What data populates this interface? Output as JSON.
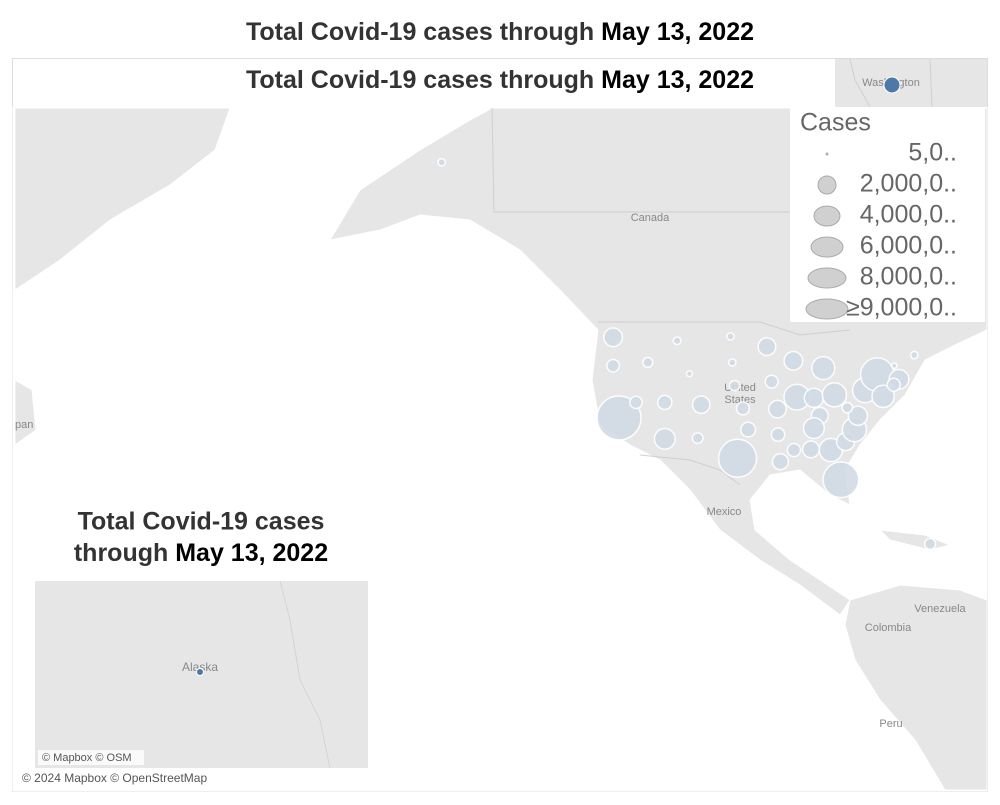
{
  "header": {
    "title_prefix": "Total Covid-19 cases through ",
    "title_date": "May 13, 2022"
  },
  "map": {
    "title_prefix": "Total Covid-19 cases through ",
    "title_date": "May 13, 2022",
    "labels": {
      "canada": "Canada",
      "united": "United",
      "states": "States",
      "mexico": "Mexico",
      "venezuela": "Venezuela",
      "colombia": "Colombia",
      "peru": "Peru",
      "japan": "pan"
    },
    "credit": "© 2024 Mapbox © OpenStreetMap",
    "bubbles": [
      {
        "lon": -120.5,
        "lat": 47.4,
        "cases": 1600000
      },
      {
        "lon": -120.5,
        "lat": 44,
        "cases": 720000
      },
      {
        "lon": -119.5,
        "lat": 37.2,
        "cases": 9000000
      },
      {
        "lon": -116.6,
        "lat": 39.3,
        "cases": 700000
      },
      {
        "lon": -114.6,
        "lat": 44.4,
        "cases": 450000
      },
      {
        "lon": -109.6,
        "lat": 47,
        "cases": 270000
      },
      {
        "lon": -107.5,
        "lat": 43,
        "cases": 160000
      },
      {
        "lon": -111.7,
        "lat": 39.3,
        "cases": 930000
      },
      {
        "lon": -111.7,
        "lat": 34.3,
        "cases": 2000000
      },
      {
        "lon": -105.5,
        "lat": 39,
        "cases": 1400000
      },
      {
        "lon": -106.1,
        "lat": 34.4,
        "cases": 520000
      },
      {
        "lon": -100.5,
        "lat": 47.5,
        "cases": 240000
      },
      {
        "lon": -100.2,
        "lat": 44.4,
        "cases": 240000
      },
      {
        "lon": -99.8,
        "lat": 41.5,
        "cases": 480000
      },
      {
        "lon": -98.4,
        "lat": 38.5,
        "cases": 770000
      },
      {
        "lon": -97.5,
        "lat": 35.6,
        "cases": 1000000
      },
      {
        "lon": -99.3,
        "lat": 31.5,
        "cases": 6700000
      },
      {
        "lon": -94.3,
        "lat": 46.3,
        "cases": 1450000
      },
      {
        "lon": -93.5,
        "lat": 42,
        "cases": 760000
      },
      {
        "lon": -92.5,
        "lat": 38.4,
        "cases": 1420000
      },
      {
        "lon": -92.4,
        "lat": 34.9,
        "cases": 830000
      },
      {
        "lon": -92,
        "lat": 31,
        "cases": 1170000
      },
      {
        "lon": -89.8,
        "lat": 44.6,
        "cases": 1600000
      },
      {
        "lon": -89.2,
        "lat": 40,
        "cases": 3100000
      },
      {
        "lon": -84.7,
        "lat": 43.7,
        "cases": 2450000
      },
      {
        "lon": -86.3,
        "lat": 39.9,
        "cases": 1700000
      },
      {
        "lon": -82.8,
        "lat": 40.3,
        "cases": 2700000
      },
      {
        "lon": -85.3,
        "lat": 37.5,
        "cases": 1320000
      },
      {
        "lon": -86.3,
        "lat": 35.8,
        "cases": 2000000
      },
      {
        "lon": -89.7,
        "lat": 32.7,
        "cases": 800000
      },
      {
        "lon": -86.8,
        "lat": 32.8,
        "cases": 1300000
      },
      {
        "lon": -83.4,
        "lat": 32.7,
        "cases": 2500000
      },
      {
        "lon": -81.7,
        "lat": 28.3,
        "cases": 5900000
      },
      {
        "lon": -80.9,
        "lat": 33.9,
        "cases": 1480000
      },
      {
        "lon": -79.4,
        "lat": 35.6,
        "cases": 2700000
      },
      {
        "lon": -78.8,
        "lat": 37.5,
        "cases": 1700000
      },
      {
        "lon": -80.6,
        "lat": 38.6,
        "cases": 500000
      },
      {
        "lon": -77.6,
        "lat": 40.9,
        "cases": 2850000
      },
      {
        "lon": -75.5,
        "lat": 42.9,
        "cases": 5200000
      },
      {
        "lon": -74.5,
        "lat": 40.1,
        "cases": 2300000
      },
      {
        "lon": -71.8,
        "lat": 42.3,
        "cases": 1800000
      },
      {
        "lon": -72.7,
        "lat": 41.6,
        "cases": 780000
      },
      {
        "lon": -72.6,
        "lat": 44,
        "cases": 130000
      },
      {
        "lon": -69.2,
        "lat": 45.3,
        "cases": 250000
      },
      {
        "lon": -149.7,
        "lat": 64,
        "cases": 250000
      },
      {
        "lon": -66.5,
        "lat": 18.2,
        "cases": 550000
      }
    ]
  },
  "legend": {
    "title": "Cases",
    "items": [
      "5,0..",
      "2,000,0..",
      "4,000,0..",
      "6,000,0..",
      "8,000,0..",
      "≥9,000,0.."
    ]
  },
  "washington_inset": {
    "label": "Washington"
  },
  "alaska_inset": {
    "title_line1": "Total Covid-19 cases",
    "title_line2_prefix": "through ",
    "title_date": "May 13, 2022",
    "label": "Alaska",
    "credit": "© Mapbox © OSM"
  }
}
